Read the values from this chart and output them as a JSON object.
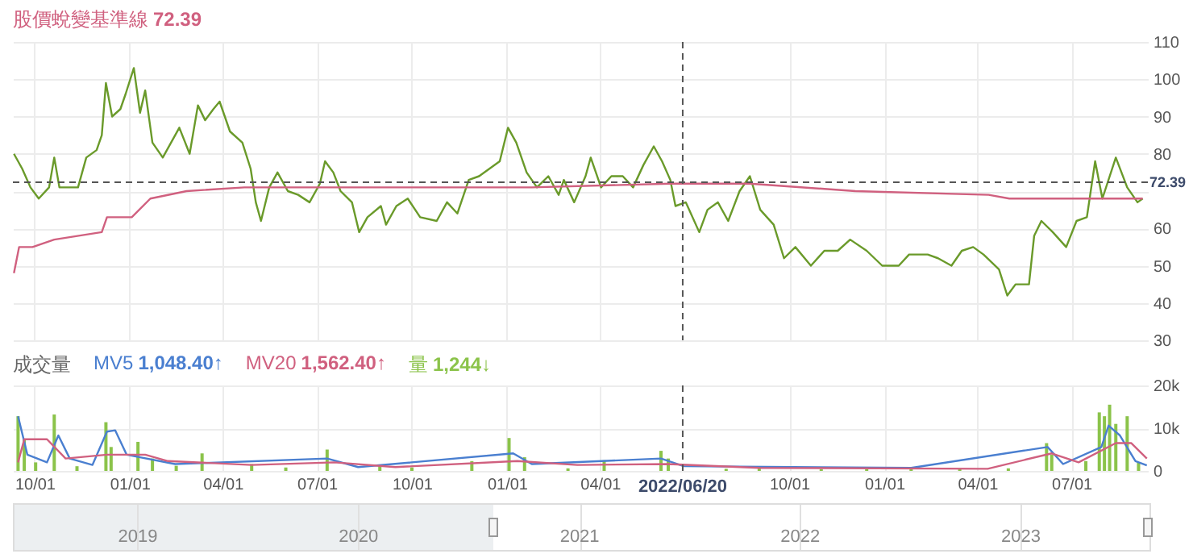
{
  "chart_data": [
    {
      "type": "line",
      "x": [
        "2020-09-11",
        "2020-09-19",
        "2020-09-27",
        "2020-10-05",
        "2020-10-15",
        "2020-10-20",
        "2020-10-25",
        "2020-11-04",
        "2020-11-12",
        "2020-11-20",
        "2020-11-30",
        "2020-12-05",
        "2020-12-09",
        "2020-12-15",
        "2020-12-23",
        "2020-12-28",
        "2021-01-05",
        "2021-01-11",
        "2021-01-16",
        "2021-01-23",
        "2021-02-02",
        "2021-02-10",
        "2021-02-18",
        "2021-02-28",
        "2021-03-08",
        "2021-03-15",
        "2021-03-23",
        "2021-03-29",
        "2021-04-08",
        "2021-04-20",
        "2021-04-28",
        "2021-05-03",
        "2021-05-08",
        "2021-05-16",
        "2021-05-24",
        "2021-06-03",
        "2021-06-13",
        "2021-06-24",
        "2021-07-04",
        "2021-07-09",
        "2021-07-17",
        "2021-07-24",
        "2021-08-04",
        "2021-08-11",
        "2021-08-19",
        "2021-09-01",
        "2021-09-06",
        "2021-09-16",
        "2021-09-27",
        "2021-10-09",
        "2021-10-25",
        "2021-11-04",
        "2021-11-14",
        "2021-11-25",
        "2021-12-05",
        "2021-12-15",
        "2021-12-25",
        "2022-01-02",
        "2022-01-10",
        "2022-01-20",
        "2022-01-30",
        "2022-02-10",
        "2022-02-20",
        "2022-02-25",
        "2022-03-07",
        "2022-03-18",
        "2022-03-23",
        "2022-04-02",
        "2022-04-12",
        "2022-04-23",
        "2022-05-03",
        "2022-05-13",
        "2022-05-23",
        "2022-05-31",
        "2022-06-08",
        "2022-06-13",
        "2022-06-23",
        "2022-07-06",
        "2022-07-14",
        "2022-07-24",
        "2022-08-03",
        "2022-08-14",
        "2022-08-24",
        "2022-09-03",
        "2022-09-16",
        "2022-09-26",
        "2022-10-07",
        "2022-10-22",
        "2022-11-04",
        "2022-11-17",
        "2022-11-29",
        "2022-12-15",
        "2022-12-30",
        "2023-01-15",
        "2023-01-25",
        "2023-02-12",
        "2023-02-22",
        "2023-03-07",
        "2023-03-17",
        "2023-03-28",
        "2023-04-07",
        "2023-04-22",
        "2023-04-30",
        "2023-05-08",
        "2023-05-21",
        "2023-05-26",
        "2023-06-02",
        "2023-06-13",
        "2023-06-26",
        "2023-07-06",
        "2023-07-16",
        "2023-07-24",
        "2023-07-31",
        "2023-08-13",
        "2023-08-24",
        "2023-09-03",
        "2023-09-08"
      ],
      "series": [
        {
          "color": "#6a9a2a",
          "values": [
            80,
            76,
            71,
            68,
            71,
            79,
            71,
            71,
            71,
            79,
            81,
            85,
            99,
            90,
            92,
            96,
            103,
            91,
            97,
            83,
            79,
            83,
            87,
            80,
            93,
            89,
            92,
            94,
            86,
            83,
            76,
            67,
            62,
            71,
            75,
            70,
            69,
            67,
            72,
            78,
            75,
            70,
            67,
            59,
            63,
            66,
            61,
            66,
            68,
            63,
            62,
            67,
            64,
            73,
            74,
            76,
            78,
            87,
            83,
            75,
            71,
            74,
            69,
            73,
            67,
            74,
            79,
            71,
            74,
            74,
            71,
            77,
            82,
            78,
            73,
            66,
            67,
            59,
            65,
            67,
            62,
            70,
            74,
            65,
            61,
            52,
            55,
            50,
            54,
            54,
            57,
            54,
            50,
            50,
            53,
            53,
            52,
            50,
            54,
            55,
            53,
            49,
            42,
            45,
            45,
            58,
            62,
            59,
            55,
            62,
            63,
            78,
            68,
            79,
            71,
            67,
            68
          ]
        },
        {
          "name": "股價蛻變基準線",
          "color": "#d0607f",
          "x": [
            "2020-09-11",
            "2020-09-16",
            "2020-09-29",
            "2020-10-20",
            "2020-12-05",
            "2020-12-10",
            "2021-01-03",
            "2021-01-21",
            "2021-02-25",
            "2021-04-22",
            "2021-07-04",
            "2021-11-19",
            "2022-01-25",
            "2022-06-08",
            "2022-08-24",
            "2022-12-04",
            "2023-04-12",
            "2023-05-02",
            "2023-09-08"
          ],
          "values": [
            48,
            55,
            55,
            57,
            59,
            63,
            63,
            68,
            70,
            71,
            71,
            71,
            71,
            72,
            72,
            70,
            69,
            68,
            68
          ]
        }
      ],
      "xlim": [
        "2020-09-10",
        "2023-09-13"
      ],
      "xticks": [
        {
          "value": "2020-10-01",
          "label": null
        },
        {
          "value": "2021-01-01",
          "label": null
        },
        {
          "value": "2021-04-01",
          "label": null
        },
        {
          "value": "2021-07-01",
          "label": null
        },
        {
          "value": "2021-10-01",
          "label": null
        },
        {
          "value": "2022-01-01",
          "label": null
        },
        {
          "value": "2022-04-01",
          "label": null
        },
        {
          "value": "2022-10-01",
          "label": null
        },
        {
          "value": "2023-01-01",
          "label": null
        },
        {
          "value": "2023-04-01",
          "label": null
        },
        {
          "value": "2023-07-01",
          "label": null
        }
      ],
      "ylim": [
        30,
        110
      ],
      "yticks": [
        30,
        40,
        50,
        60,
        {
          "value": 70,
          "label": null
        },
        80,
        90,
        100,
        110
      ],
      "tick_labels": "y",
      "grid": true,
      "marker": "none",
      "line_style": "solid",
      "annotations": [
        "72.39"
      ],
      "ref_lines": [
        {
          "axis": "y",
          "value": 72.39,
          "label": "72.39",
          "line_style": "dashed",
          "color": "#555555"
        },
        {
          "axis": "x",
          "value": "2022-06-20",
          "line_style": "dashed",
          "color": "#555555"
        }
      ]
    },
    {
      "type": "bar",
      "title": "成交量",
      "x": [
        "2020-09-15",
        "2020-09-21",
        "2020-10-02",
        "2020-10-20",
        "2020-11-11",
        "2020-12-09",
        "2020-12-14",
        "2021-01-09",
        "2021-01-23",
        "2021-02-15",
        "2021-03-12",
        "2021-04-29",
        "2021-06-01",
        "2021-07-11",
        "2021-08-31",
        "2021-10-01",
        "2021-11-28",
        "2022-01-03",
        "2022-01-18",
        "2022-03-01",
        "2022-04-05",
        "2022-05-30",
        "2022-06-06",
        "2022-08-01",
        "2022-09-02",
        "2022-11-01",
        "2022-12-15",
        "2023-01-27",
        "2023-03-15",
        "2023-05-01",
        "2023-06-07",
        "2023-06-12",
        "2023-07-15",
        "2023-07-28",
        "2023-08-02",
        "2023-08-07",
        "2023-08-13",
        "2023-08-24",
        "2023-09-04"
      ],
      "series": [
        {
          "name": "MV5",
          "type": "line",
          "color": "#4a7fd0",
          "x": [
            "2020-09-15",
            "2020-09-24",
            "2020-10-13",
            "2020-10-24",
            "2020-11-04",
            "2020-11-26",
            "2020-12-10",
            "2020-12-18",
            "2020-12-29",
            "2021-02-14",
            "2021-07-11",
            "2021-08-10",
            "2022-01-07",
            "2022-01-25",
            "2022-05-30",
            "2022-06-21",
            "2023-01-27",
            "2023-06-08",
            "2023-06-23",
            "2023-07-30",
            "2023-08-06",
            "2023-08-17",
            "2023-09-01",
            "2023-09-12"
          ],
          "values": [
            12800,
            3800,
            2000,
            8300,
            2900,
            1400,
            9200,
            9500,
            3800,
            1600,
            2900,
            900,
            4100,
            1600,
            2900,
            1100,
            700,
            5600,
            1600,
            5600,
            10600,
            8300,
            2300,
            1300
          ]
        },
        {
          "name": "MV20",
          "type": "line",
          "color": "#d0607f",
          "x": [
            "2020-09-15",
            "2020-09-21",
            "2020-10-13",
            "2020-10-31",
            "2020-12-10",
            "2021-01-16",
            "2021-02-07",
            "2021-04-29",
            "2021-07-18",
            "2021-09-15",
            "2022-01-11",
            "2022-03-10",
            "2022-06-06",
            "2022-09-02",
            "2023-04-11",
            "2023-06-12",
            "2023-07-08",
            "2023-08-13",
            "2023-08-28",
            "2023-09-12"
          ],
          "values": [
            2000,
            7400,
            7400,
            2900,
            3800,
            3800,
            2300,
            1400,
            2000,
            900,
            2300,
            1400,
            1600,
            700,
            500,
            4100,
            2000,
            6500,
            6500,
            2900
          ]
        },
        {
          "name": "量",
          "color": "#8bc34a",
          "values": [
            12800,
            7400,
            2000,
            13200,
            1100,
            11400,
            5600,
            6800,
            2900,
            1200,
            4100,
            1600,
            800,
            5000,
            1400,
            800,
            2300,
            7700,
            3200,
            600,
            2500,
            4700,
            2900,
            500,
            1100,
            400,
            400,
            900,
            500,
            600,
            6500,
            3800,
            2300,
            13700,
            12800,
            15500,
            11000,
            12800,
            2000
          ]
        }
      ],
      "xlim": [
        "2020-09-10",
        "2023-09-13"
      ],
      "xticks": [
        {
          "value": "2020-10-01",
          "label": "10/01"
        },
        {
          "value": "2021-01-01",
          "label": "01/01"
        },
        {
          "value": "2021-04-01",
          "label": "04/01"
        },
        {
          "value": "2021-07-01",
          "label": "07/01"
        },
        {
          "value": "2021-10-01",
          "label": "10/01"
        },
        {
          "value": "2022-01-01",
          "label": "01/01"
        },
        {
          "value": "2022-04-01",
          "label": "04/01"
        },
        {
          "value": "2022-10-01",
          "label": "10/01"
        },
        {
          "value": "2023-01-01",
          "label": "01/01"
        },
        {
          "value": "2023-04-01",
          "label": "04/01"
        },
        {
          "value": "2023-07-01",
          "label": "07/01"
        }
      ],
      "ylim": [
        0,
        20000
      ],
      "yticks": [
        0,
        {
          "value": 10000,
          "label": "10k"
        },
        {
          "value": 20000,
          "label": "20k"
        }
      ],
      "grid": true,
      "marker": "none",
      "x2lim": [
        "2018-06-11",
        "2023-08-07"
      ],
      "x2ticks": [
        {
          "value": "2019-01-01",
          "label": "2019"
        },
        {
          "value": "2020-01-01",
          "label": "2020"
        },
        {
          "value": "2021-01-01",
          "label": "2021"
        },
        {
          "value": "2022-01-01",
          "label": "2022"
        },
        {
          "value": "2023-01-01",
          "label": "2023"
        }
      ],
      "annotations": [
        "1,048.40↑",
        "1,562.40↑",
        "1,244↓"
      ],
      "ref_lines": [
        {
          "axis": "x",
          "value": "2022-06-20",
          "label": "2022/06/20",
          "line_style": "dashed",
          "color": "#555555"
        }
      ]
    }
  ]
}
